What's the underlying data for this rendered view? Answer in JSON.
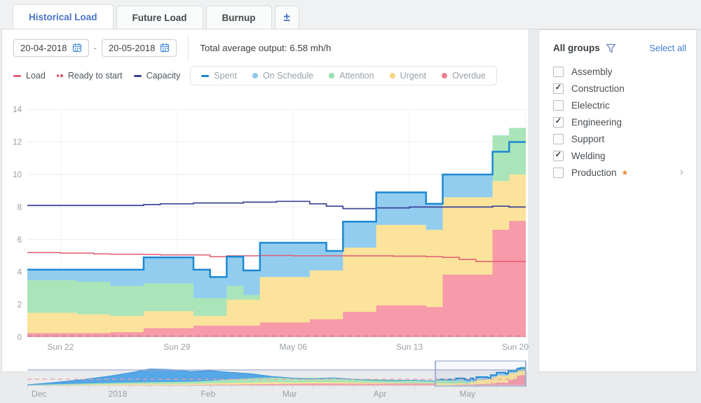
{
  "tab_bar": {
    "tabs": [
      {
        "label": "Historical Load",
        "active": true
      },
      {
        "label": "Future Load",
        "active": false
      },
      {
        "label": "Burnup",
        "active": false
      }
    ],
    "export_icon": "±"
  },
  "toolbar": {
    "start_date": "20-04-2018",
    "end_date": "20-05-2018",
    "range_separator": "-",
    "total_output": "Total average output: 6.58 mh/h"
  },
  "line_legend": [
    {
      "label": "Load",
      "marker": "dash",
      "color": "#e2607a"
    },
    {
      "label": "Ready to start",
      "marker": "dots",
      "color": "#cf4f66"
    },
    {
      "label": "Capacity",
      "marker": "dash",
      "color": "#39418f"
    }
  ],
  "area_legend": [
    {
      "label": "Spent",
      "marker": "dash",
      "color": "#1f86cf"
    },
    {
      "label": "On Schedule",
      "marker": "dot",
      "color": "#8fc6ee"
    },
    {
      "label": "Attention",
      "marker": "dot",
      "color": "#97dfad"
    },
    {
      "label": "Urgent",
      "marker": "dot",
      "color": "#f8d47e"
    },
    {
      "label": "Overdue",
      "marker": "dot",
      "color": "#f08096"
    }
  ],
  "sidebar": {
    "title": "All groups",
    "select_all": "Select all",
    "check_glyph": "✓",
    "chevron_glyph": "›",
    "star_glyph": "★",
    "link_color": "#3f7cd6",
    "star_color": "#e8883a",
    "groups": [
      {
        "label": "Assembly",
        "checked": false
      },
      {
        "label": "Construction",
        "checked": true
      },
      {
        "label": "Elelectric",
        "checked": false
      },
      {
        "label": "Engineering",
        "checked": true
      },
      {
        "label": "Support",
        "checked": false
      },
      {
        "label": "Welding",
        "checked": true
      },
      {
        "label": "Production",
        "checked": false,
        "starred": true,
        "expandable": true
      }
    ]
  },
  "chart_data": {
    "type": "area",
    "main": {
      "date_range": [
        "20-04-2018",
        "20-05-2018"
      ],
      "days": 30,
      "ylim": [
        0,
        14
      ],
      "y_ticks": [
        0,
        2,
        4,
        6,
        8,
        10,
        12,
        14
      ],
      "x_ticks": [
        {
          "day": 2,
          "label": "Sun 22"
        },
        {
          "day": 9,
          "label": "Sun 29"
        },
        {
          "day": 16,
          "label": "May 06"
        },
        {
          "day": 23,
          "label": "Sun 13"
        },
        {
          "day": 30,
          "label": "Sun 20"
        }
      ],
      "stack_order_bottom_to_top": [
        "overdue",
        "urgent",
        "attention",
        "on_schedule"
      ],
      "stacked_area_tops": {
        "overdue": [
          0.25,
          0.25,
          0.25,
          0.25,
          0.25,
          0.3,
          0.3,
          0.55,
          0.55,
          0.55,
          0.7,
          0.7,
          0.7,
          0.7,
          0.9,
          0.9,
          0.9,
          1.1,
          1.1,
          1.55,
          1.55,
          1.95,
          1.95,
          1.95,
          1.85,
          3.85,
          3.85,
          3.85,
          6.6,
          7.15,
          7.15
        ],
        "urgent": [
          1.5,
          1.5,
          1.5,
          1.4,
          1.4,
          1.3,
          1.3,
          1.6,
          1.6,
          1.6,
          1.3,
          1.3,
          2.3,
          2.3,
          3.7,
          3.7,
          3.7,
          4.1,
          4.1,
          5.5,
          5.5,
          6.9,
          6.9,
          6.9,
          6.6,
          8.6,
          8.6,
          8.6,
          9.6,
          10,
          10
        ],
        "attention": [
          3.5,
          3.5,
          3.5,
          3.4,
          3.4,
          3.15,
          3.15,
          3.3,
          3.3,
          3.3,
          2.4,
          2.4,
          3.15,
          2.6,
          3.7,
          3.7,
          3.7,
          4.1,
          4.1,
          5.5,
          5.5,
          6.9,
          6.9,
          6.9,
          6.6,
          8.6,
          8.6,
          8.6,
          12.4,
          12.86,
          12.86
        ],
        "on_schedule": [
          4.15,
          4.15,
          4.15,
          4.15,
          4.15,
          4.15,
          4.15,
          4.9,
          4.9,
          4.9,
          4.15,
          3.7,
          4.95,
          4.1,
          5.8,
          5.8,
          5.8,
          5.8,
          5.3,
          7.1,
          7.1,
          8.9,
          8.9,
          8.9,
          8.2,
          10,
          10,
          10,
          12.4,
          12.86,
          12.86
        ]
      },
      "lines": {
        "spent": [
          4.15,
          4.15,
          4.15,
          4.15,
          4.15,
          4.15,
          4.15,
          4.9,
          4.9,
          4.9,
          4.15,
          3.7,
          4.95,
          4.1,
          5.8,
          5.8,
          5.8,
          5.8,
          5.3,
          7.1,
          7.1,
          8.9,
          8.9,
          8.9,
          8.2,
          10,
          10,
          10,
          11.4,
          12,
          12
        ],
        "capacity": [
          8.1,
          8.1,
          8.1,
          8.1,
          8.1,
          8.1,
          8.1,
          8.15,
          8.2,
          8.2,
          8.25,
          8.25,
          8.25,
          8.3,
          8.3,
          8.35,
          8.35,
          8.2,
          8.05,
          7.9,
          7.9,
          7.95,
          7.95,
          8,
          8,
          8,
          8,
          8,
          8.05,
          8,
          8
        ],
        "load": [
          5.2,
          5.2,
          5.17,
          5.17,
          5.12,
          5.1,
          5.1,
          5.08,
          5.05,
          5.05,
          5.05,
          4.95,
          5,
          5,
          5.02,
          5.02,
          5,
          5,
          5,
          5,
          5,
          5,
          4.98,
          4.98,
          4.95,
          4.9,
          4.77,
          4.65,
          4.65,
          4.65,
          4.65
        ],
        "ready_to_start": 0.07
      },
      "colors": {
        "overdue": "#f79aa9",
        "urgent": "#fbe39b",
        "attention": "#a9e5b8",
        "on_schedule": "#92cdf0",
        "spent": "#1e88d2",
        "capacity": "#3a4494",
        "load": "#e25b70",
        "ready": "#b5888f",
        "grid": "#ededee",
        "vgrid": "#f1f1f2",
        "axis_text": "#979da3"
      }
    },
    "navigator": {
      "total_days": 171,
      "labels": [
        {
          "day": 4,
          "label": "Dec"
        },
        {
          "day": 31,
          "label": "2018"
        },
        {
          "day": 62,
          "label": "Feb"
        },
        {
          "day": 90,
          "label": "Mar"
        },
        {
          "day": 121,
          "label": "Apr"
        },
        {
          "day": 151,
          "label": "May"
        }
      ],
      "selection": {
        "start_day": 140,
        "end_day": 171
      },
      "pre": {
        "x": [
          0,
          7,
          14,
          21,
          28,
          35,
          42,
          49,
          56,
          63,
          70,
          77,
          84,
          91,
          98,
          105,
          112,
          119,
          126,
          133,
          140
        ],
        "spent": [
          0.5,
          1.6,
          3,
          4.6,
          6.4,
          8.6,
          11.4,
          11,
          9.6,
          10.2,
          9,
          8,
          6.2,
          5,
          4.6,
          5.2,
          4.2,
          3.6,
          3.3,
          3.6,
          3
        ],
        "attention": [
          0.3,
          0.7,
          1,
          1.4,
          1.7,
          2,
          2.2,
          2.4,
          2.6,
          3.2,
          4.2,
          5,
          5.4,
          5,
          5.4,
          5.2,
          4.8,
          4.4,
          4,
          3.6,
          3.2
        ],
        "urgent": [
          0.15,
          0.3,
          0.5,
          0.7,
          0.8,
          1,
          1.1,
          1.1,
          1.2,
          1.5,
          1.8,
          2,
          2.2,
          2.1,
          2.3,
          2.2,
          2,
          1.9,
          1.7,
          1.6,
          1.5
        ],
        "overdue": [
          0.05,
          0.1,
          0.15,
          0.2,
          0.25,
          0.3,
          0.3,
          0.35,
          0.4,
          0.6,
          0.7,
          0.8,
          1,
          1.1,
          1.3,
          1.3,
          1.2,
          1.2,
          1.3,
          1.3,
          1.3
        ]
      },
      "capacity_value": 10.7,
      "ready_value": 4.3,
      "colors": {
        "capacity": "#9da6cc",
        "ready": "#eb9fae",
        "pre_spent": "#55a7e6",
        "pre_spent_edge": "#3c98dd",
        "selection_border": "#9fb0d0",
        "selection_fill": "rgba(110,140,195,0.07)",
        "tick": "#cdd0d3"
      }
    }
  }
}
